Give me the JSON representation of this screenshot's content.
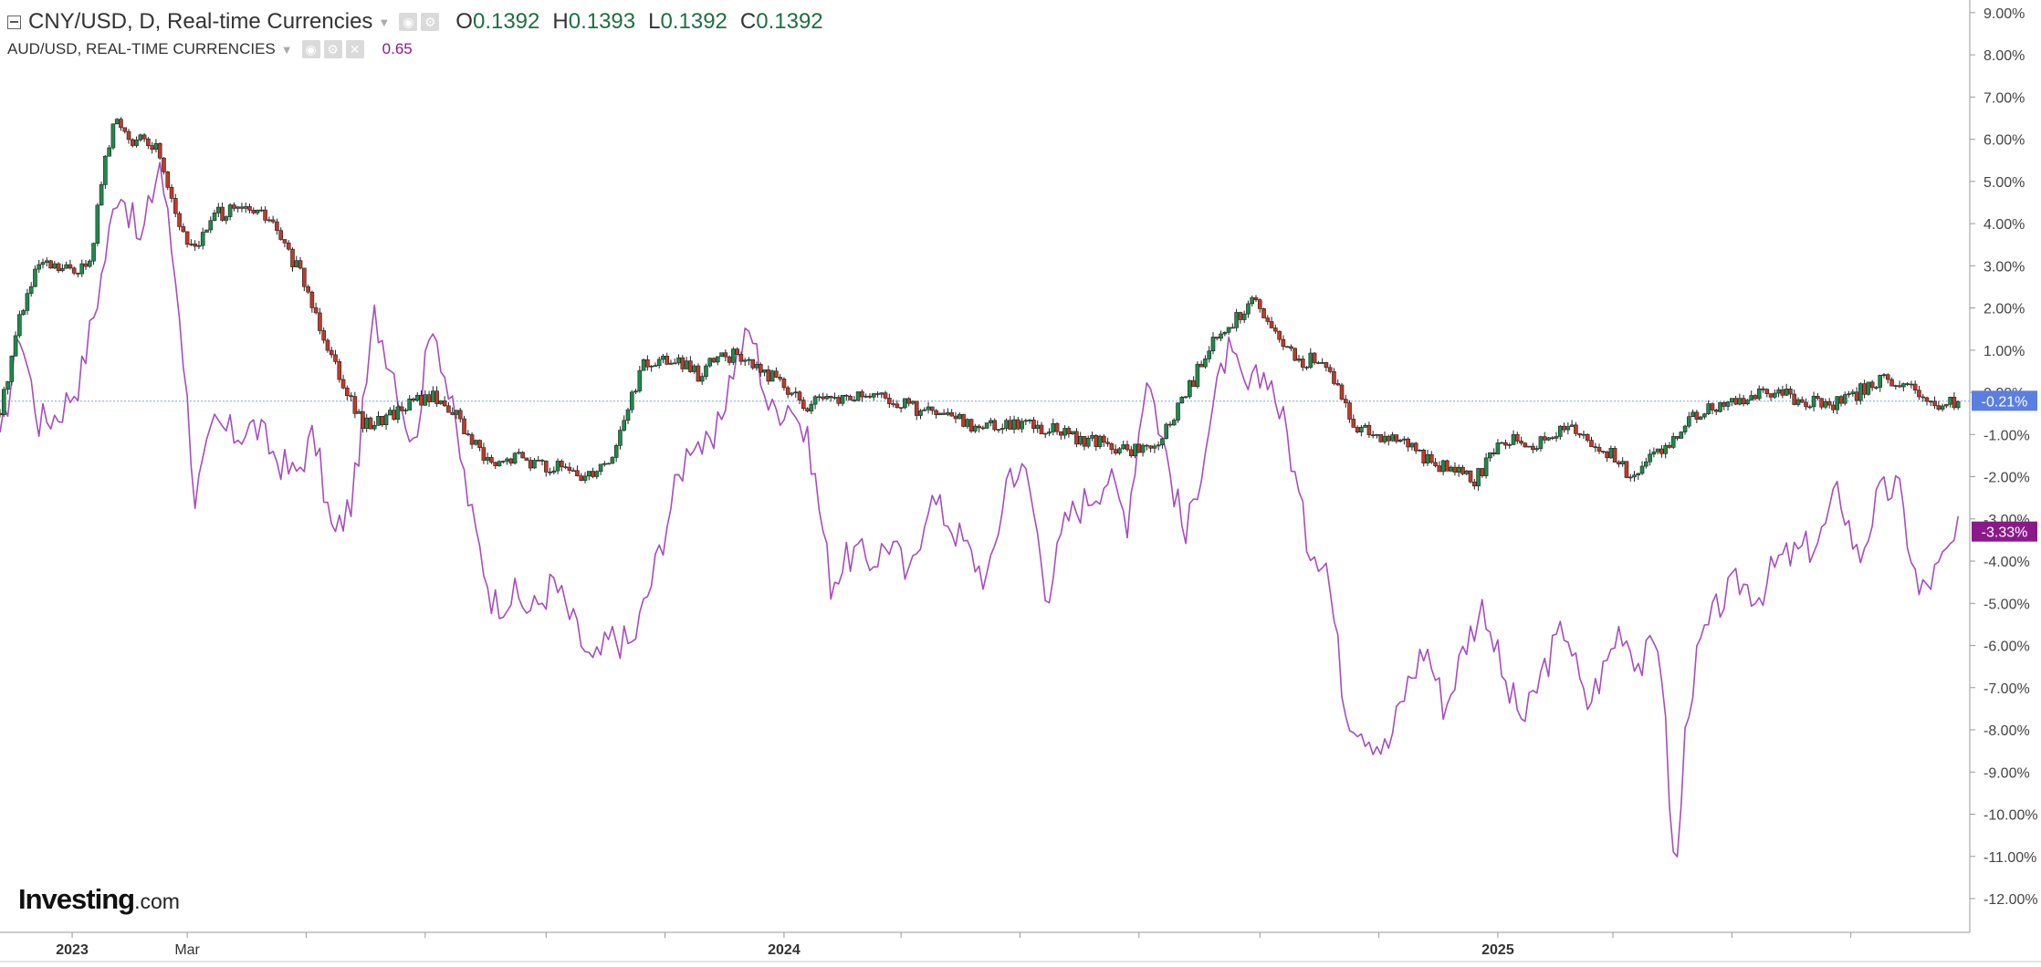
{
  "header": {
    "main_symbol": "CNY/USD, D, Real-time Currencies",
    "ohlc": [
      {
        "label": "O",
        "value": "0.1392"
      },
      {
        "label": "H",
        "value": "0.1393"
      },
      {
        "label": "L",
        "value": "0.1392"
      },
      {
        "label": "C",
        "value": "0.1392"
      }
    ],
    "overlay_symbol": "AUD/USD, REAL-TIME CURRENCIES",
    "overlay_value": "0.65"
  },
  "logo": {
    "text": "Investing",
    "suffix": ".com"
  },
  "colors": {
    "up": "#1e8a4c",
    "down": "#c0392b",
    "overlay": "#a64dbf",
    "cny_badge": "#5b7fe0",
    "aud_badge": "#8a1a8a",
    "grid_ref": "#7fa4e8"
  },
  "chart_data": {
    "type": "line",
    "title": "CNY/USD, D, Real-time Currencies",
    "xlabel": "",
    "ylabel": "",
    "ylim": [
      -12.8,
      9.3
    ],
    "y_unit": "%",
    "y_ticks": [
      9,
      8,
      7,
      6,
      5,
      4,
      3,
      2,
      1,
      0,
      -1,
      -2,
      -3,
      -4,
      -5,
      -6,
      -7,
      -8,
      -9,
      -10,
      -11,
      -12
    ],
    "y_tick_labels": [
      "9.00%",
      "8.00%",
      "7.00%",
      "6.00%",
      "5.00%",
      "4.00%",
      "3.00%",
      "2.00%",
      "1.00%",
      "0.00%",
      "-1.00%",
      "-2.00%",
      "-3.00%",
      "-4.00%",
      "-5.00%",
      "-6.00%",
      "-7.00%",
      "-8.00%",
      "-9.00%",
      "-10.00%",
      "-11.00%",
      "-12.00%"
    ],
    "x_ticks": [
      {
        "label": "2023",
        "date": "2023-01-01",
        "bold": true
      },
      {
        "label": "Mar",
        "date": "2023-03-01",
        "bold": false
      },
      {
        "label": "",
        "date": "2023-05-01",
        "bold": false
      },
      {
        "label": "",
        "date": "2023-07-01",
        "bold": false
      },
      {
        "label": "",
        "date": "2023-09-01",
        "bold": false
      },
      {
        "label": "",
        "date": "2023-11-01",
        "bold": false
      },
      {
        "label": "2024",
        "date": "2024-01-01",
        "bold": true
      },
      {
        "label": "",
        "date": "2024-03-01",
        "bold": false
      },
      {
        "label": "",
        "date": "2024-05-01",
        "bold": false
      },
      {
        "label": "",
        "date": "2024-07-01",
        "bold": false
      },
      {
        "label": "",
        "date": "2024-09-01",
        "bold": false
      },
      {
        "label": "",
        "date": "2024-11-01",
        "bold": false
      },
      {
        "label": "2025",
        "date": "2025-01-01",
        "bold": true
      },
      {
        "label": "",
        "date": "2025-03-01",
        "bold": false
      },
      {
        "label": "",
        "date": "2025-05-01",
        "bold": false
      },
      {
        "label": "",
        "date": "2025-07-01",
        "bold": false
      }
    ],
    "xlim": [
      "2022-11-25",
      "2025-08-31"
    ],
    "reference_line": -0.21,
    "grid": false,
    "series": [
      {
        "name": "CNY/USD, D, Real-time Currencies",
        "style": "candlestick",
        "last_label": "-0.21%",
        "x": [
          "2022-11-25",
          "2022-12-05",
          "2022-12-15",
          "2022-12-28",
          "2023-01-10",
          "2023-01-16",
          "2023-01-23",
          "2023-02-01",
          "2023-02-14",
          "2023-02-28",
          "2023-03-08",
          "2023-03-15",
          "2023-03-25",
          "2023-04-05",
          "2023-04-12",
          "2023-04-28",
          "2023-05-15",
          "2023-05-30",
          "2023-06-10",
          "2023-06-25",
          "2023-07-05",
          "2023-07-15",
          "2023-07-25",
          "2023-08-05",
          "2023-08-18",
          "2023-08-28",
          "2023-09-08",
          "2023-09-20",
          "2023-10-05",
          "2023-10-20",
          "2023-11-05",
          "2023-11-18",
          "2023-11-28",
          "2023-12-08",
          "2023-12-20",
          "2023-12-30",
          "2024-01-10",
          "2024-01-25",
          "2024-02-10",
          "2024-02-25",
          "2024-03-10",
          "2024-03-25",
          "2024-04-10",
          "2024-04-25",
          "2024-05-10",
          "2024-05-25",
          "2024-06-10",
          "2024-06-25",
          "2024-07-10",
          "2024-07-20",
          "2024-07-28",
          "2024-08-05",
          "2024-08-15",
          "2024-08-28",
          "2024-09-10",
          "2024-09-20",
          "2024-09-30",
          "2024-10-10",
          "2024-10-20",
          "2024-10-31",
          "2024-11-10",
          "2024-11-20",
          "2024-11-30",
          "2024-12-10",
          "2024-12-20",
          "2024-12-31",
          "2025-01-10",
          "2025-01-20",
          "2025-01-30",
          "2025-02-10",
          "2025-02-20",
          "2025-03-01",
          "2025-03-10",
          "2025-03-20",
          "2025-03-30",
          "2025-04-08",
          "2025-04-20",
          "2025-04-30",
          "2025-05-10",
          "2025-05-20",
          "2025-05-30",
          "2025-06-10",
          "2025-06-20",
          "2025-06-30",
          "2025-07-10",
          "2025-07-20",
          "2025-07-30",
          "2025-08-10",
          "2025-08-20",
          "2025-08-26"
        ],
        "values": [
          -0.5,
          1.8,
          3.0,
          2.9,
          3.0,
          5.0,
          6.5,
          6.0,
          5.8,
          3.5,
          3.6,
          4.2,
          4.3,
          4.3,
          4.1,
          2.8,
          0.8,
          -0.8,
          -0.6,
          -0.2,
          -0.1,
          -0.4,
          -1.2,
          -1.8,
          -1.5,
          -1.7,
          -1.8,
          -2.0,
          -1.5,
          0.6,
          0.8,
          0.4,
          0.8,
          0.9,
          0.5,
          0.3,
          -0.3,
          -0.2,
          -0.1,
          -0.2,
          -0.4,
          -0.6,
          -0.8,
          -0.7,
          -0.8,
          -1.0,
          -1.2,
          -1.4,
          -1.3,
          -0.5,
          0.2,
          1.0,
          1.5,
          2.2,
          1.3,
          0.7,
          0.8,
          0.3,
          -0.8,
          -1.0,
          -1.2,
          -1.4,
          -1.7,
          -1.8,
          -2.1,
          -1.3,
          -1.0,
          -1.3,
          -1.0,
          -0.9,
          -1.2,
          -1.5,
          -2.0,
          -1.6,
          -1.2,
          -0.6,
          -0.4,
          -0.2,
          -0.1,
          0.0,
          -0.1,
          -0.2,
          -0.3,
          -0.2,
          0.2,
          0.3,
          0.1,
          -0.2,
          -0.3,
          -0.2
        ]
      },
      {
        "name": "AUD/USD, REAL-TIME CURRENCIES",
        "style": "line",
        "last_label": "-3.33%",
        "x": [
          "2022-11-25",
          "2022-12-05",
          "2022-12-15",
          "2022-12-25",
          "2023-01-05",
          "2023-01-15",
          "2023-01-25",
          "2023-02-05",
          "2023-02-15",
          "2023-02-25",
          "2023-03-05",
          "2023-03-15",
          "2023-03-25",
          "2023-04-05",
          "2023-04-15",
          "2023-04-25",
          "2023-05-05",
          "2023-05-15",
          "2023-05-25",
          "2023-06-05",
          "2023-06-15",
          "2023-06-25",
          "2023-07-05",
          "2023-07-15",
          "2023-07-25",
          "2023-08-05",
          "2023-08-15",
          "2023-08-25",
          "2023-09-05",
          "2023-09-15",
          "2023-09-25",
          "2023-10-05",
          "2023-10-15",
          "2023-10-25",
          "2023-11-05",
          "2023-11-15",
          "2023-11-25",
          "2023-12-05",
          "2023-12-15",
          "2023-12-25",
          "2024-01-05",
          "2024-01-15",
          "2024-01-25",
          "2024-02-05",
          "2024-02-15",
          "2024-02-25",
          "2024-03-05",
          "2024-03-15",
          "2024-03-25",
          "2024-04-05",
          "2024-04-15",
          "2024-04-25",
          "2024-05-05",
          "2024-05-15",
          "2024-05-25",
          "2024-06-05",
          "2024-06-15",
          "2024-06-25",
          "2024-07-05",
          "2024-07-15",
          "2024-07-25",
          "2024-08-05",
          "2024-08-15",
          "2024-08-25",
          "2024-09-05",
          "2024-09-15",
          "2024-09-25",
          "2024-10-05",
          "2024-10-15",
          "2024-10-25",
          "2024-11-05",
          "2024-11-15",
          "2024-11-25",
          "2024-12-05",
          "2024-12-15",
          "2024-12-25",
          "2025-01-05",
          "2025-01-15",
          "2025-01-25",
          "2025-02-05",
          "2025-02-15",
          "2025-02-25",
          "2025-03-05",
          "2025-03-15",
          "2025-03-25",
          "2025-04-02",
          "2025-04-08",
          "2025-04-15",
          "2025-04-25",
          "2025-05-05",
          "2025-05-15",
          "2025-05-25",
          "2025-06-05",
          "2025-06-15",
          "2025-06-25",
          "2025-07-05",
          "2025-07-15",
          "2025-07-25",
          "2025-08-05",
          "2025-08-15",
          "2025-08-26"
        ],
        "values": [
          -1.3,
          1.5,
          -0.7,
          -0.5,
          0.3,
          2.5,
          5.0,
          3.5,
          5.5,
          2.0,
          -2.5,
          -0.8,
          -1.0,
          -0.8,
          -1.5,
          -2.0,
          -1.0,
          -3.5,
          -2.5,
          1.8,
          0.5,
          -1.3,
          1.8,
          -0.5,
          -3.0,
          -5.0,
          -4.8,
          -5.2,
          -4.5,
          -5.5,
          -6.5,
          -5.8,
          -6.0,
          -4.5,
          -2.5,
          -1.0,
          -1.5,
          0.5,
          1.5,
          -0.5,
          -0.2,
          -1.5,
          -4.5,
          -3.8,
          -4.0,
          -3.5,
          -4.5,
          -2.5,
          -3.0,
          -3.8,
          -4.5,
          -1.8,
          -2.0,
          -4.8,
          -3.0,
          -2.5,
          -2.0,
          -3.0,
          0.5,
          -1.5,
          -3.5,
          -1.0,
          1.0,
          0.0,
          0.5,
          -1.0,
          -3.5,
          -4.0,
          -7.5,
          -8.0,
          -8.5,
          -7.0,
          -6.0,
          -7.5,
          -6.0,
          -5.0,
          -7.0,
          -7.8,
          -6.5,
          -5.5,
          -7.5,
          -6.5,
          -5.5,
          -6.5,
          -5.8,
          -11.8,
          -7.5,
          -6.0,
          -5.0,
          -4.5,
          -4.8,
          -4.0,
          -3.8,
          -3.5,
          -2.3,
          -4.0,
          -2.5,
          -2.2,
          -4.8,
          -4.2,
          -3.3
        ]
      }
    ]
  }
}
